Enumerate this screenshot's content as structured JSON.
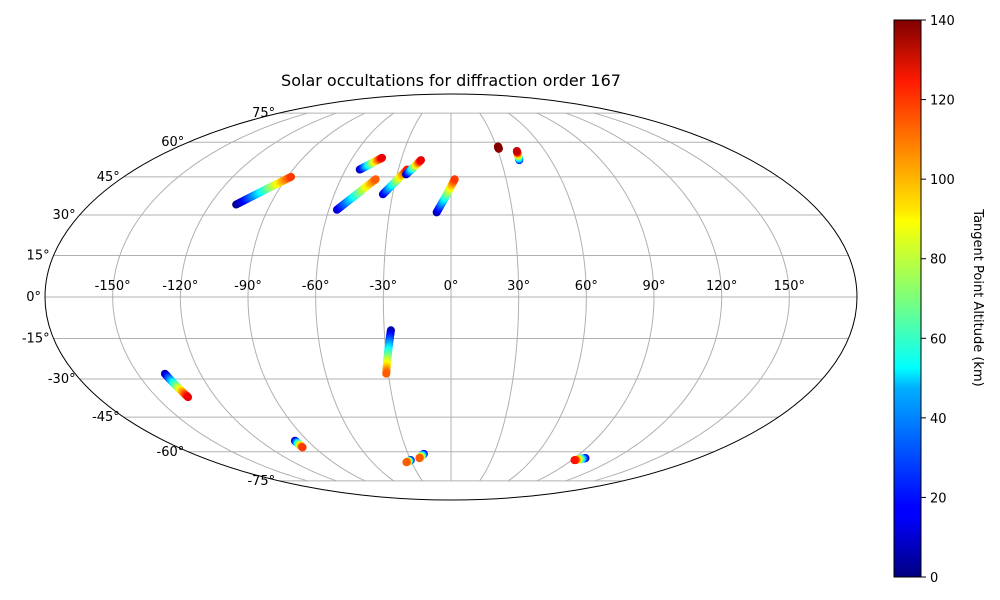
{
  "chart_data": {
    "type": "scatter",
    "projection": "mollweide",
    "title": "Solar occultations for diffraction order 167",
    "grid": true,
    "lon_ticks": [
      -150,
      -120,
      -90,
      -60,
      -30,
      0,
      30,
      60,
      90,
      120,
      150
    ],
    "lon_tick_labels": [
      "-150°",
      "-120°",
      "-90°",
      "-60°",
      "-30°",
      "0°",
      "30°",
      "60°",
      "90°",
      "120°",
      "150°"
    ],
    "lat_ticks": [
      75,
      60,
      45,
      30,
      15,
      0,
      -15,
      -30,
      -45,
      -60,
      -75
    ],
    "lat_tick_labels": [
      "75°",
      "60°",
      "45°",
      "30°",
      "15°",
      "0°",
      "-15°",
      "-30°",
      "-45°",
      "-60°",
      "-75°"
    ],
    "colorbar": {
      "label": "Tangent Point Altitude (km)",
      "colormap": "jet",
      "range": [
        0,
        140
      ],
      "ticks": [
        0,
        20,
        40,
        60,
        80,
        100,
        120,
        140
      ],
      "tick_labels": [
        "0",
        "20",
        "40",
        "60",
        "80",
        "100",
        "120",
        "140"
      ],
      "placement": "right"
    },
    "tracks": [
      {
        "lon_start": -107,
        "lat_start": 34,
        "lon_end": -88,
        "lat_end": 45,
        "alt_start": 0,
        "alt_end": 115
      },
      {
        "lon_start": -52,
        "lat_start": 48,
        "lon_end": -42,
        "lat_end": 53,
        "alt_start": 5,
        "alt_end": 125
      },
      {
        "lon_start": -56,
        "lat_start": 32,
        "lon_end": -41,
        "lat_end": 44,
        "alt_start": 10,
        "alt_end": 110
      },
      {
        "lon_start": -35,
        "lat_start": 38,
        "lon_end": -25,
        "lat_end": 48,
        "alt_start": 10,
        "alt_end": 120
      },
      {
        "lon_start": -25,
        "lat_start": 46,
        "lon_end": -18,
        "lat_end": 52,
        "alt_start": 5,
        "alt_end": 125
      },
      {
        "lon_start": -7,
        "lat_start": 31,
        "lon_end": 2,
        "lat_end": 44,
        "alt_start": 5,
        "alt_end": 115
      },
      {
        "lon_start": 31,
        "lat_start": 57,
        "lon_end": 31,
        "lat_end": 58,
        "alt_start": 135,
        "alt_end": 140
      },
      {
        "lon_start": 41,
        "lat_start": 52,
        "lon_end": 42,
        "lat_end": 56,
        "alt_start": 20,
        "alt_end": 130
      },
      {
        "lon_start": -27,
        "lat_start": -12,
        "lon_end": -31,
        "lat_end": -28,
        "alt_start": 5,
        "alt_end": 110
      },
      {
        "lon_start": -137,
        "lat_start": -28,
        "lon_end": -134,
        "lat_end": -37,
        "alt_start": 5,
        "alt_end": 125
      },
      {
        "lon_start": -98,
        "lat_start": -55,
        "lon_end": -98,
        "lat_end": -58,
        "alt_start": 5,
        "alt_end": 115
      },
      {
        "lon_start": -30,
        "lat_start": -64,
        "lon_end": -34,
        "lat_end": -65,
        "alt_start": 5,
        "alt_end": 110
      },
      {
        "lon_start": -19,
        "lat_start": -61,
        "lon_end": -23,
        "lat_end": -63,
        "alt_start": 5,
        "alt_end": 110
      },
      {
        "lon_start": 98,
        "lat_start": -63,
        "lon_end": 92,
        "lat_end": -64,
        "alt_start": 5,
        "alt_end": 120
      }
    ]
  }
}
